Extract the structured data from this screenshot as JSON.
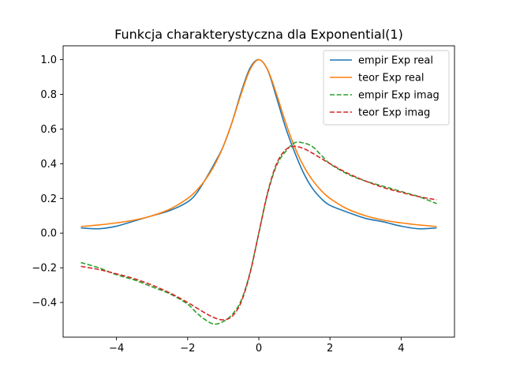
{
  "chart_data": {
    "type": "line",
    "title": "Funkcja charakterystyczna dla Exponential(1)",
    "xlabel": "",
    "ylabel": "",
    "xlim": [
      -5.5,
      5.5
    ],
    "ylim": [
      -0.6,
      1.08
    ],
    "x_ticks": [
      -4,
      -2,
      0,
      2,
      4
    ],
    "x_tick_labels": [
      "−4",
      "−2",
      "0",
      "2",
      "4"
    ],
    "y_ticks": [
      -0.4,
      -0.2,
      0.0,
      0.2,
      0.4,
      0.6,
      0.8,
      1.0
    ],
    "y_tick_labels": [
      "−0.4",
      "−0.2",
      "0.0",
      "0.2",
      "0.4",
      "0.6",
      "0.8",
      "1.0"
    ],
    "grid": false,
    "legend_position": "top-right",
    "x": [
      -5,
      -4.5,
      -4,
      -3.5,
      -3,
      -2.5,
      -2,
      -1.75,
      -1.5,
      -1.25,
      -1,
      -0.75,
      -0.5,
      -0.25,
      0,
      0.25,
      0.5,
      0.75,
      1,
      1.25,
      1.5,
      1.75,
      2,
      2.5,
      3,
      3.5,
      4,
      4.5,
      5
    ],
    "series": [
      {
        "name": "empir Exp real",
        "color": "#1f77b4",
        "dash": "solid",
        "values": [
          0.03,
          0.025,
          0.04,
          0.07,
          0.1,
          0.13,
          0.18,
          0.23,
          0.31,
          0.4,
          0.5,
          0.64,
          0.81,
          0.95,
          1.0,
          0.94,
          0.78,
          0.61,
          0.47,
          0.35,
          0.26,
          0.2,
          0.16,
          0.12,
          0.085,
          0.065,
          0.04,
          0.025,
          0.03
        ]
      },
      {
        "name": "teor Exp real",
        "color": "#ff7f0e",
        "dash": "solid",
        "values": [
          0.038,
          0.047,
          0.059,
          0.075,
          0.1,
          0.138,
          0.2,
          0.246,
          0.308,
          0.39,
          0.5,
          0.64,
          0.8,
          0.941,
          1.0,
          0.941,
          0.8,
          0.64,
          0.5,
          0.39,
          0.308,
          0.246,
          0.2,
          0.138,
          0.1,
          0.075,
          0.059,
          0.047,
          0.038
        ]
      },
      {
        "name": "empir Exp imag",
        "color": "#2ca02c",
        "dash": "dashed",
        "values": [
          -0.17,
          -0.2,
          -0.24,
          -0.27,
          -0.31,
          -0.35,
          -0.41,
          -0.46,
          -0.5,
          -0.525,
          -0.51,
          -0.47,
          -0.39,
          -0.23,
          0.0,
          0.23,
          0.39,
          0.47,
          0.52,
          0.52,
          0.5,
          0.45,
          0.4,
          0.34,
          0.3,
          0.27,
          0.24,
          0.21,
          0.17
        ]
      },
      {
        "name": "teor Exp imag",
        "color": "#d62728",
        "dash": "dashed",
        "values": [
          -0.192,
          -0.21,
          -0.235,
          -0.263,
          -0.3,
          -0.345,
          -0.4,
          -0.431,
          -0.462,
          -0.488,
          -0.5,
          -0.48,
          -0.4,
          -0.235,
          0.0,
          0.235,
          0.4,
          0.48,
          0.5,
          0.488,
          0.462,
          0.431,
          0.4,
          0.345,
          0.3,
          0.263,
          0.235,
          0.21,
          0.192
        ]
      }
    ]
  }
}
